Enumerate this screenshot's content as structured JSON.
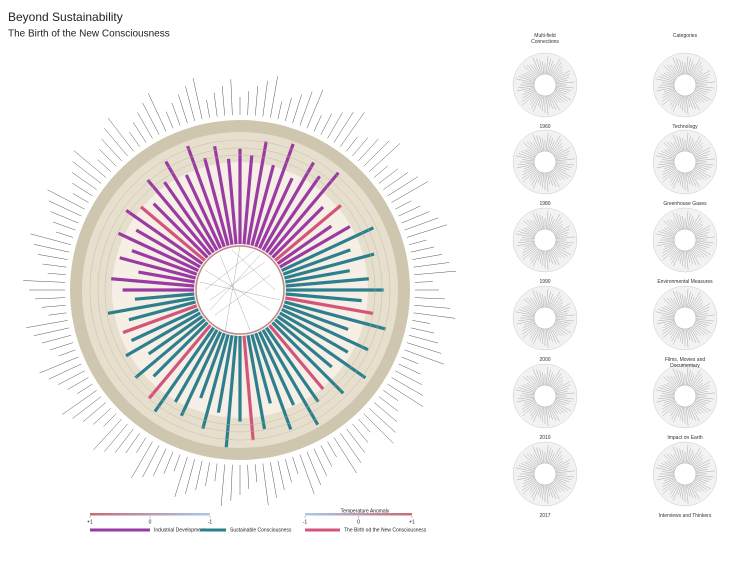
{
  "header": {
    "title": "Beyond Sustainability",
    "subtitle": "The Birth of the New Consciousness"
  },
  "chart_data": {
    "type": "radial-bar",
    "ylim": [
      0,
      100
    ],
    "series": [
      {
        "name": "Industrial Development",
        "color": "#9a3aa3",
        "values": [
          80,
          75,
          88,
          70,
          92,
          65,
          85,
          78,
          90,
          60,
          null,
          55,
          68,
          null,
          null,
          null,
          null,
          null,
          null,
          null,
          null,
          null,
          null,
          null,
          null,
          null,
          null,
          null,
          null,
          null,
          null,
          null,
          null,
          null,
          null,
          null,
          null,
          null,
          null,
          null,
          null,
          null,
          null,
          null,
          null,
          null,
          null,
          null,
          null,
          null,
          null,
          null,
          null,
          null,
          60,
          70,
          48,
          66,
          58,
          74,
          62,
          78,
          null,
          64,
          82,
          72,
          86,
          68,
          90,
          76,
          84,
          72
        ]
      },
      {
        "name": "Sustainable Consciousness",
        "color": "#2e7f8e",
        "values": [
          null,
          null,
          null,
          null,
          null,
          null,
          null,
          null,
          null,
          null,
          null,
          null,
          null,
          85,
          60,
          78,
          55,
          70,
          82,
          64,
          null,
          88,
          58,
          80,
          66,
          90,
          62,
          84,
          null,
          76,
          92,
          68,
          86,
          60,
          80,
          null,
          72,
          94,
          66,
          82,
          58,
          78,
          70,
          86,
          null,
          64,
          76,
          55,
          72,
          62,
          null,
          58,
          74,
          50,
          null,
          null,
          null,
          null,
          null,
          null,
          null,
          null,
          null,
          null,
          null,
          null,
          null,
          null,
          null,
          null,
          null,
          null
        ]
      },
      {
        "name": "The Birth od the New Consciousness",
        "color": "#d4557a",
        "values": [
          null,
          null,
          null,
          null,
          null,
          null,
          null,
          null,
          null,
          null,
          72,
          null,
          null,
          null,
          null,
          null,
          null,
          null,
          null,
          null,
          75,
          null,
          null,
          null,
          null,
          null,
          null,
          null,
          70,
          null,
          null,
          null,
          null,
          null,
          null,
          88,
          null,
          null,
          null,
          null,
          null,
          null,
          null,
          null,
          80,
          null,
          null,
          null,
          null,
          null,
          66,
          null,
          null,
          null,
          null,
          null,
          null,
          null,
          null,
          null,
          null,
          null,
          70,
          null,
          null,
          null,
          null,
          null,
          null,
          null,
          null,
          null
        ]
      }
    ]
  },
  "temperature_legend": {
    "title": "Temperature Anomaly",
    "scales": [
      {
        "xlim": [
          1,
          -1
        ],
        "colors": [
          "#c96a72",
          "#a9c9ea"
        ],
        "xticks": [
          {
            "value": 1,
            "label": "+1"
          },
          0,
          -1
        ]
      },
      {
        "xlim": [
          -1,
          1
        ],
        "colors": [
          "#a9c9ea",
          "#c96a72"
        ],
        "xticks": [
          -1,
          0,
          {
            "value": 1,
            "label": "+1"
          }
        ]
      }
    ]
  },
  "small_multiples": {
    "columns": [
      "Multi-field Connections",
      "Categories"
    ],
    "left": [
      "1960",
      "1980",
      "1990",
      "2000",
      "2010",
      "2017"
    ],
    "right": [
      "Technology",
      "Greenhouse Gases",
      "Environmental Measures",
      "Films, Movies and Documentary",
      "Impact on Earth",
      "Interviews and Thinkers"
    ]
  }
}
